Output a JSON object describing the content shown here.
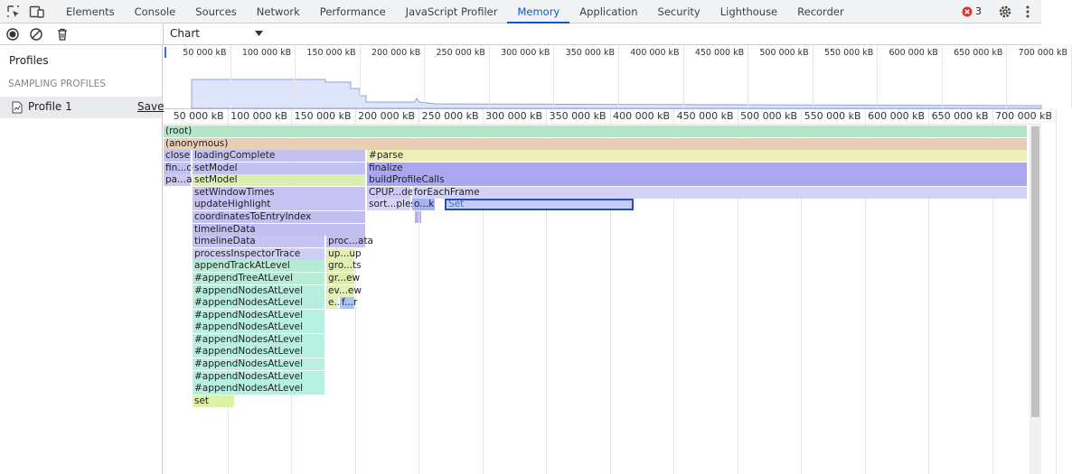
{
  "tabs": [
    "Elements",
    "Console",
    "Sources",
    "Network",
    "Performance",
    "JavaScript Profiler",
    "Memory",
    "Application",
    "Security",
    "Lighthouse",
    "Recorder"
  ],
  "selected_tab": 6,
  "error_count": 3,
  "toolbar": {
    "view": "Chart"
  },
  "sidebar": {
    "title": "Profiles",
    "section": "SAMPLING PROFILES",
    "profile": "Profile 1",
    "save": "Save"
  },
  "xlim": [
    0,
    700000
  ],
  "xticks": [
    {
      "value": 50000,
      "label": "50 000 kB"
    },
    {
      "value": 100000,
      "label": "100 000 kB"
    },
    {
      "value": 150000,
      "label": "150 000 kB"
    },
    {
      "value": 200000,
      "label": "200 000 kB"
    },
    {
      "value": 250000,
      "label": "250 000 kB"
    },
    {
      "value": 300000,
      "label": "300 000 kB"
    },
    {
      "value": 350000,
      "label": "350 000 kB"
    },
    {
      "value": 400000,
      "label": "400 000 kB"
    },
    {
      "value": 450000,
      "label": "450 000 kB"
    },
    {
      "value": 500000,
      "label": "500 000 kB"
    },
    {
      "value": 550000,
      "label": "550 000 kB"
    },
    {
      "value": 600000,
      "label": "600 000 kB"
    },
    {
      "value": 650000,
      "label": "650 000 kB"
    },
    {
      "value": 700000,
      "label": "700 000 kB"
    }
  ],
  "selected_frame": 21,
  "frames": [
    {
      "name": "(root)",
      "level": 0,
      "start": 0,
      "size": 678000,
      "color": "#b3e6c8"
    },
    {
      "name": "(anonymous)",
      "level": 1,
      "start": 0,
      "size": 678000,
      "color": "#e8cfb3"
    },
    {
      "name": "close",
      "level": 2,
      "start": 0,
      "size": 22000,
      "color": "#c4c1f0"
    },
    {
      "name": "loadingComplete",
      "level": 2,
      "start": 22700,
      "size": 136200,
      "color": "#c4c1f0"
    },
    {
      "name": "#parse",
      "level": 2,
      "start": 159600,
      "size": 518400,
      "color": "#eef0b8"
    },
    {
      "name": "fin...ce",
      "level": 3,
      "start": 0,
      "size": 22000,
      "color": "#c0c3f2"
    },
    {
      "name": "setModel",
      "level": 3,
      "start": 22700,
      "size": 136200,
      "color": "#c0c3f2"
    },
    {
      "name": "finalize",
      "level": 3,
      "start": 159600,
      "size": 518400,
      "color": "#a9a7f0"
    },
    {
      "name": "pa...at",
      "level": 4,
      "start": 0,
      "size": 22000,
      "color": "#cfc8f0"
    },
    {
      "name": "setModel",
      "level": 4,
      "start": 22700,
      "size": 136200,
      "color": "#dcefb2"
    },
    {
      "name": "buildProfileCalls",
      "level": 4,
      "start": 159600,
      "size": 518400,
      "color": "#a9a7f0"
    },
    {
      "name": "setWindowTimes",
      "level": 5,
      "start": 22700,
      "size": 136200,
      "color": "#c8c3f2"
    },
    {
      "name": "CPUP...del",
      "level": 5,
      "start": 159600,
      "size": 34700,
      "color": "#cfcaf5"
    },
    {
      "name": "forEachFrame",
      "level": 5,
      "start": 195000,
      "size": 483000,
      "color": "#d4d2f7"
    },
    {
      "name": "updateHighlight",
      "level": 6,
      "start": 22700,
      "size": 136200,
      "color": "#c8c3f2"
    },
    {
      "name": "sort...ples",
      "level": 6,
      "start": 159600,
      "size": 34700,
      "color": "#d8d4f6"
    },
    {
      "name": "o...k",
      "level": 6,
      "start": 195000,
      "size": 18500,
      "color": "#a8b2f0"
    },
    {
      "name": "coordinatesToEntryIndex",
      "level": 7,
      "start": 22700,
      "size": 136200,
      "color": "#c2bef0"
    },
    {
      "name": "timelineData",
      "level": 8,
      "start": 22700,
      "size": 136200,
      "color": "#c2bef0"
    },
    {
      "name": "timelineData",
      "level": 9,
      "start": 22700,
      "size": 104300,
      "color": "#c8c3f2"
    },
    {
      "name": "proc...ata",
      "level": 9,
      "start": 127700,
      "size": 31200,
      "color": "#c2bef0"
    },
    {
      "name": "Set",
      "level": 6,
      "start": 220600,
      "size": 148900,
      "color": "#c4cdf7"
    },
    {
      "name": "processInspectorTrace",
      "level": 10,
      "start": 22700,
      "size": 104300,
      "color": "#cdd0f4"
    },
    {
      "name": "up...up",
      "level": 10,
      "start": 127700,
      "size": 22700,
      "color": "#e6efb3"
    },
    {
      "name": "appendTrackAtLevel",
      "level": 11,
      "start": 22700,
      "size": 104300,
      "color": "#b8ebd5"
    },
    {
      "name": "gro...ts",
      "level": 11,
      "start": 127700,
      "size": 22700,
      "color": "#e0eeb4"
    },
    {
      "name": "#appendTreeAtLevel",
      "level": 12,
      "start": 22700,
      "size": 104300,
      "color": "#b8ecd6"
    },
    {
      "name": "gr...ew",
      "level": 12,
      "start": 127700,
      "size": 22700,
      "color": "#e0ecae"
    },
    {
      "name": "#appendNodesAtLevel",
      "level": 13,
      "start": 22700,
      "size": 104300,
      "color": "#b8eede"
    },
    {
      "name": "ev...ew",
      "level": 13,
      "start": 127700,
      "size": 22700,
      "color": "#e4efb5"
    },
    {
      "name": "#appendNodesAtLevel",
      "level": 14,
      "start": 22700,
      "size": 104300,
      "color": "#b8eede"
    },
    {
      "name": "e...",
      "level": 14,
      "start": 127700,
      "size": 9900,
      "color": "#e4efb5"
    },
    {
      "name": "f...r",
      "level": 14,
      "start": 138300,
      "size": 12100,
      "color": "#a9c5f2"
    },
    {
      "name": "#appendNodesAtLevel",
      "level": 15,
      "start": 22700,
      "size": 104300,
      "color": "#b7f0e1"
    },
    {
      "name": "#appendNodesAtLevel",
      "level": 16,
      "start": 22700,
      "size": 104300,
      "color": "#b7f0e1"
    },
    {
      "name": "#appendNodesAtLevel",
      "level": 17,
      "start": 22700,
      "size": 104300,
      "color": "#b7f0e1"
    },
    {
      "name": "#appendNodesAtLevel",
      "level": 18,
      "start": 22700,
      "size": 104300,
      "color": "#b7f0e1"
    },
    {
      "name": "#appendNodesAtLevel",
      "level": 19,
      "start": 22700,
      "size": 104300,
      "color": "#b7f0e1"
    },
    {
      "name": "#appendNodesAtLevel",
      "level": 20,
      "start": 22700,
      "size": 104300,
      "color": "#b7f0e1"
    },
    {
      "name": "#appendNodesAtLevel",
      "level": 21,
      "start": 22700,
      "size": 104300,
      "color": "#b7f0e1"
    },
    {
      "name": "set",
      "level": 22,
      "start": 22700,
      "size": 33300,
      "color": "#ddf4a7"
    }
  ]
}
